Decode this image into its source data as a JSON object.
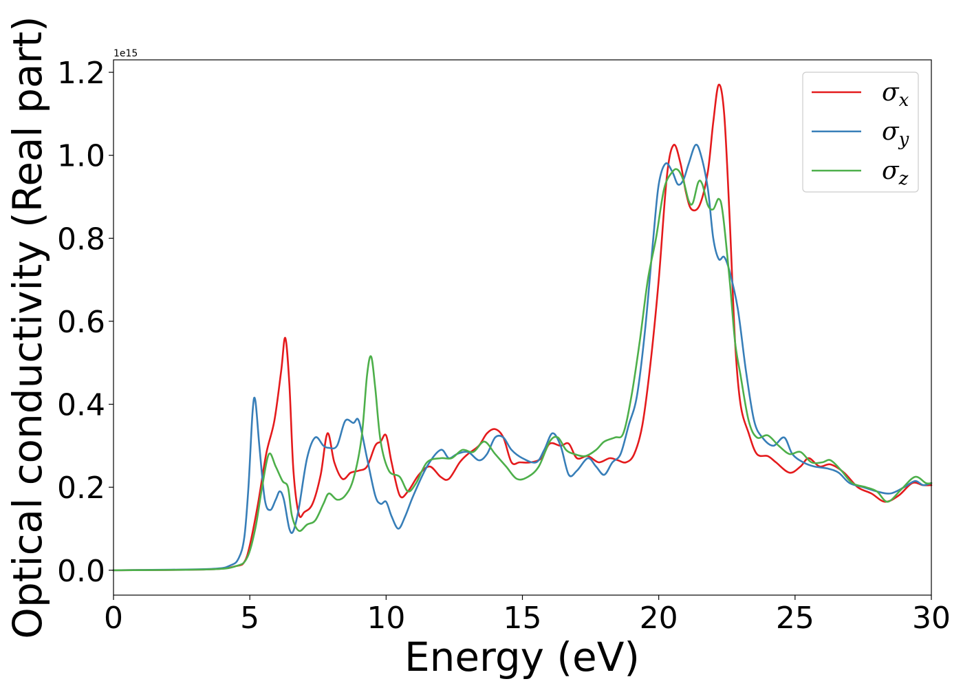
{
  "chart_data": {
    "type": "line",
    "title": "",
    "xlabel": "Energy (eV)",
    "ylabel": "Optical conductivity (Real part)",
    "y_offset_label": "1e15",
    "xlim": [
      0,
      30
    ],
    "ylim": [
      -0.06,
      1.23
    ],
    "xticks": [
      0,
      5,
      10,
      15,
      20,
      25,
      30
    ],
    "xtick_labels": [
      "0",
      "5",
      "10",
      "15",
      "20",
      "25",
      "30"
    ],
    "yticks": [
      0.0,
      0.2,
      0.4,
      0.6,
      0.8,
      1.0,
      1.2
    ],
    "ytick_labels": [
      "0.0",
      "0.2",
      "0.4",
      "0.6",
      "0.8",
      "1.0",
      "1.2"
    ],
    "grid": false,
    "legend_position": "top-right",
    "series": [
      {
        "name": "σ",
        "subscript": "x",
        "color": "#e41a1c",
        "points": [
          [
            0,
            0
          ],
          [
            3.5,
            0.002
          ],
          [
            4.5,
            0.01
          ],
          [
            4.8,
            0.02
          ],
          [
            5.0,
            0.06
          ],
          [
            5.3,
            0.16
          ],
          [
            5.6,
            0.28
          ],
          [
            5.9,
            0.36
          ],
          [
            6.15,
            0.48
          ],
          [
            6.3,
            0.56
          ],
          [
            6.45,
            0.45
          ],
          [
            6.6,
            0.24
          ],
          [
            6.8,
            0.135
          ],
          [
            7.0,
            0.14
          ],
          [
            7.3,
            0.16
          ],
          [
            7.6,
            0.23
          ],
          [
            7.85,
            0.33
          ],
          [
            8.1,
            0.26
          ],
          [
            8.4,
            0.22
          ],
          [
            8.7,
            0.235
          ],
          [
            9.0,
            0.24
          ],
          [
            9.3,
            0.25
          ],
          [
            9.6,
            0.3
          ],
          [
            9.8,
            0.31
          ],
          [
            10.0,
            0.325
          ],
          [
            10.2,
            0.26
          ],
          [
            10.5,
            0.18
          ],
          [
            10.8,
            0.19
          ],
          [
            11.2,
            0.23
          ],
          [
            11.6,
            0.25
          ],
          [
            12.0,
            0.225
          ],
          [
            12.3,
            0.22
          ],
          [
            12.7,
            0.26
          ],
          [
            13.0,
            0.28
          ],
          [
            13.4,
            0.3
          ],
          [
            13.7,
            0.33
          ],
          [
            14.0,
            0.34
          ],
          [
            14.3,
            0.32
          ],
          [
            14.6,
            0.26
          ],
          [
            14.9,
            0.26
          ],
          [
            15.3,
            0.26
          ],
          [
            15.7,
            0.27
          ],
          [
            16.0,
            0.305
          ],
          [
            16.4,
            0.3
          ],
          [
            16.7,
            0.305
          ],
          [
            17.0,
            0.27
          ],
          [
            17.4,
            0.275
          ],
          [
            17.8,
            0.26
          ],
          [
            18.2,
            0.27
          ],
          [
            18.5,
            0.265
          ],
          [
            18.8,
            0.26
          ],
          [
            19.1,
            0.28
          ],
          [
            19.4,
            0.35
          ],
          [
            19.7,
            0.5
          ],
          [
            20.0,
            0.7
          ],
          [
            20.3,
            0.95
          ],
          [
            20.55,
            1.025
          ],
          [
            20.8,
            0.98
          ],
          [
            21.0,
            0.91
          ],
          [
            21.2,
            0.87
          ],
          [
            21.5,
            0.88
          ],
          [
            21.8,
            0.96
          ],
          [
            22.0,
            1.08
          ],
          [
            22.2,
            1.17
          ],
          [
            22.4,
            1.1
          ],
          [
            22.6,
            0.85
          ],
          [
            22.8,
            0.55
          ],
          [
            23.0,
            0.4
          ],
          [
            23.3,
            0.33
          ],
          [
            23.6,
            0.28
          ],
          [
            24.0,
            0.275
          ],
          [
            24.3,
            0.26
          ],
          [
            24.8,
            0.235
          ],
          [
            25.2,
            0.25
          ],
          [
            25.5,
            0.27
          ],
          [
            25.9,
            0.25
          ],
          [
            26.3,
            0.255
          ],
          [
            26.8,
            0.235
          ],
          [
            27.3,
            0.2
          ],
          [
            27.8,
            0.185
          ],
          [
            28.3,
            0.165
          ],
          [
            28.8,
            0.18
          ],
          [
            29.3,
            0.21
          ],
          [
            29.7,
            0.205
          ],
          [
            30.0,
            0.205
          ]
        ]
      },
      {
        "name": "σ",
        "subscript": "y",
        "color": "#377eb8",
        "points": [
          [
            0,
            0
          ],
          [
            3.5,
            0.003
          ],
          [
            4.3,
            0.012
          ],
          [
            4.6,
            0.03
          ],
          [
            4.8,
            0.08
          ],
          [
            4.95,
            0.2
          ],
          [
            5.1,
            0.38
          ],
          [
            5.2,
            0.41
          ],
          [
            5.35,
            0.3
          ],
          [
            5.55,
            0.17
          ],
          [
            5.75,
            0.145
          ],
          [
            5.95,
            0.17
          ],
          [
            6.1,
            0.19
          ],
          [
            6.25,
            0.17
          ],
          [
            6.45,
            0.1
          ],
          [
            6.6,
            0.095
          ],
          [
            6.8,
            0.15
          ],
          [
            7.1,
            0.27
          ],
          [
            7.4,
            0.32
          ],
          [
            7.7,
            0.3
          ],
          [
            7.9,
            0.295
          ],
          [
            8.2,
            0.3
          ],
          [
            8.5,
            0.36
          ],
          [
            8.8,
            0.355
          ],
          [
            9.0,
            0.36
          ],
          [
            9.3,
            0.27
          ],
          [
            9.6,
            0.18
          ],
          [
            9.8,
            0.16
          ],
          [
            10.0,
            0.165
          ],
          [
            10.2,
            0.13
          ],
          [
            10.45,
            0.1
          ],
          [
            10.7,
            0.13
          ],
          [
            11.0,
            0.18
          ],
          [
            11.5,
            0.25
          ],
          [
            12.0,
            0.29
          ],
          [
            12.3,
            0.27
          ],
          [
            12.6,
            0.28
          ],
          [
            13.0,
            0.285
          ],
          [
            13.4,
            0.265
          ],
          [
            13.7,
            0.28
          ],
          [
            14.0,
            0.32
          ],
          [
            14.3,
            0.32
          ],
          [
            14.6,
            0.29
          ],
          [
            15.0,
            0.27
          ],
          [
            15.5,
            0.26
          ],
          [
            15.8,
            0.29
          ],
          [
            16.1,
            0.33
          ],
          [
            16.4,
            0.3
          ],
          [
            16.7,
            0.23
          ],
          [
            17.0,
            0.24
          ],
          [
            17.4,
            0.27
          ],
          [
            17.7,
            0.25
          ],
          [
            18.0,
            0.23
          ],
          [
            18.3,
            0.26
          ],
          [
            18.6,
            0.28
          ],
          [
            18.9,
            0.35
          ],
          [
            19.2,
            0.42
          ],
          [
            19.5,
            0.58
          ],
          [
            19.8,
            0.8
          ],
          [
            20.0,
            0.93
          ],
          [
            20.25,
            0.98
          ],
          [
            20.5,
            0.96
          ],
          [
            20.7,
            0.93
          ],
          [
            20.9,
            0.94
          ],
          [
            21.1,
            0.98
          ],
          [
            21.35,
            1.025
          ],
          [
            21.55,
            1.0
          ],
          [
            21.8,
            0.92
          ],
          [
            22.0,
            0.8
          ],
          [
            22.2,
            0.75
          ],
          [
            22.4,
            0.755
          ],
          [
            22.6,
            0.72
          ],
          [
            22.9,
            0.63
          ],
          [
            23.2,
            0.48
          ],
          [
            23.5,
            0.36
          ],
          [
            23.8,
            0.32
          ],
          [
            24.2,
            0.3
          ],
          [
            24.6,
            0.32
          ],
          [
            24.9,
            0.28
          ],
          [
            25.3,
            0.26
          ],
          [
            25.7,
            0.25
          ],
          [
            26.2,
            0.245
          ],
          [
            26.6,
            0.235
          ],
          [
            27.0,
            0.21
          ],
          [
            27.5,
            0.2
          ],
          [
            28.0,
            0.19
          ],
          [
            28.5,
            0.185
          ],
          [
            29.0,
            0.2
          ],
          [
            29.4,
            0.215
          ],
          [
            29.7,
            0.205
          ],
          [
            30.0,
            0.21
          ]
        ]
      },
      {
        "name": "σ",
        "subscript": "z",
        "color": "#4daf4a",
        "points": [
          [
            0,
            0
          ],
          [
            3.5,
            0.002
          ],
          [
            4.5,
            0.01
          ],
          [
            4.9,
            0.03
          ],
          [
            5.2,
            0.1
          ],
          [
            5.45,
            0.2
          ],
          [
            5.7,
            0.28
          ],
          [
            5.95,
            0.25
          ],
          [
            6.2,
            0.215
          ],
          [
            6.4,
            0.2
          ],
          [
            6.55,
            0.13
          ],
          [
            6.8,
            0.095
          ],
          [
            7.1,
            0.11
          ],
          [
            7.4,
            0.12
          ],
          [
            7.7,
            0.16
          ],
          [
            7.9,
            0.185
          ],
          [
            8.2,
            0.17
          ],
          [
            8.5,
            0.18
          ],
          [
            8.8,
            0.22
          ],
          [
            9.1,
            0.32
          ],
          [
            9.3,
            0.47
          ],
          [
            9.45,
            0.515
          ],
          [
            9.6,
            0.44
          ],
          [
            9.8,
            0.31
          ],
          [
            10.1,
            0.24
          ],
          [
            10.5,
            0.225
          ],
          [
            10.8,
            0.19
          ],
          [
            11.1,
            0.21
          ],
          [
            11.5,
            0.26
          ],
          [
            12.0,
            0.27
          ],
          [
            12.4,
            0.27
          ],
          [
            12.8,
            0.29
          ],
          [
            13.2,
            0.285
          ],
          [
            13.6,
            0.31
          ],
          [
            14.0,
            0.28
          ],
          [
            14.4,
            0.25
          ],
          [
            14.8,
            0.22
          ],
          [
            15.2,
            0.225
          ],
          [
            15.6,
            0.25
          ],
          [
            16.0,
            0.31
          ],
          [
            16.3,
            0.32
          ],
          [
            16.6,
            0.29
          ],
          [
            16.9,
            0.28
          ],
          [
            17.3,
            0.275
          ],
          [
            17.7,
            0.29
          ],
          [
            18.0,
            0.31
          ],
          [
            18.4,
            0.32
          ],
          [
            18.7,
            0.33
          ],
          [
            19.0,
            0.42
          ],
          [
            19.3,
            0.55
          ],
          [
            19.6,
            0.7
          ],
          [
            19.9,
            0.8
          ],
          [
            20.2,
            0.92
          ],
          [
            20.5,
            0.96
          ],
          [
            20.7,
            0.965
          ],
          [
            20.9,
            0.94
          ],
          [
            21.1,
            0.89
          ],
          [
            21.25,
            0.885
          ],
          [
            21.45,
            0.935
          ],
          [
            21.6,
            0.93
          ],
          [
            21.8,
            0.88
          ],
          [
            22.0,
            0.87
          ],
          [
            22.2,
            0.895
          ],
          [
            22.35,
            0.86
          ],
          [
            22.6,
            0.7
          ],
          [
            22.8,
            0.55
          ],
          [
            23.0,
            0.47
          ],
          [
            23.3,
            0.36
          ],
          [
            23.6,
            0.32
          ],
          [
            24.0,
            0.325
          ],
          [
            24.4,
            0.3
          ],
          [
            24.8,
            0.28
          ],
          [
            25.2,
            0.285
          ],
          [
            25.6,
            0.26
          ],
          [
            26.0,
            0.26
          ],
          [
            26.3,
            0.265
          ],
          [
            26.7,
            0.24
          ],
          [
            27.1,
            0.21
          ],
          [
            27.6,
            0.2
          ],
          [
            28.0,
            0.19
          ],
          [
            28.4,
            0.165
          ],
          [
            28.9,
            0.195
          ],
          [
            29.4,
            0.225
          ],
          [
            29.8,
            0.21
          ],
          [
            30.0,
            0.21
          ]
        ]
      }
    ]
  }
}
